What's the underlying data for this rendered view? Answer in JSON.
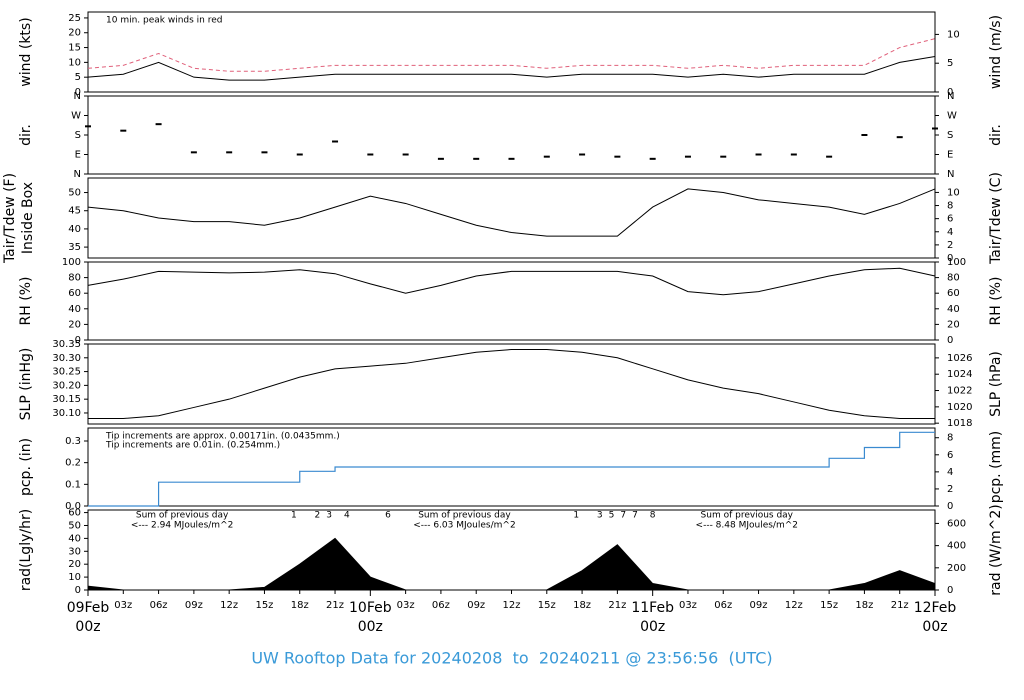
{
  "chart_data": [
    {
      "type": "line",
      "ylabel": "wind (kts)",
      "y2label": "wind (m/s)",
      "x": [
        0,
        3,
        6,
        9,
        12,
        15,
        18,
        21,
        24,
        27,
        30,
        33,
        36,
        39,
        42,
        45,
        48,
        51,
        54,
        57,
        60,
        63,
        66,
        69,
        72
      ],
      "xlim": [
        0,
        72
      ],
      "ylim": [
        0,
        27
      ],
      "yticks": [
        0,
        5,
        10,
        15,
        20,
        25
      ],
      "y2lim": [
        0,
        13.89
      ],
      "y2ticks": [
        0,
        5,
        10
      ],
      "annotations": [
        {
          "text": "10 min. peak winds in red",
          "color": "#d0506a"
        }
      ],
      "series": [
        {
          "name": "peak",
          "color": "#e0607a",
          "dash": true,
          "values": [
            8,
            9,
            13,
            8,
            7,
            7,
            8,
            9,
            9,
            9,
            9,
            9,
            9,
            8,
            9,
            9,
            9,
            8,
            9,
            8,
            9,
            9,
            9,
            15,
            18
          ]
        },
        {
          "name": "wind",
          "color": "#000000",
          "values": [
            5,
            6,
            10,
            5,
            4,
            4,
            5,
            6,
            6,
            6,
            6,
            6,
            6,
            5,
            6,
            6,
            6,
            5,
            6,
            5,
            6,
            6,
            6,
            10,
            12
          ]
        }
      ]
    },
    {
      "type": "scatter",
      "ylabel": "dir.",
      "y2label": "dir.",
      "x": [
        0,
        3,
        6,
        9,
        12,
        15,
        18,
        21,
        24,
        27,
        30,
        33,
        36,
        39,
        42,
        45,
        48,
        51,
        54,
        57,
        60,
        63,
        66,
        69,
        72
      ],
      "xlim": [
        0,
        72
      ],
      "ylim": [
        0,
        360
      ],
      "yticks": [
        {
          "value": 0,
          "label": "N"
        },
        {
          "value": 90,
          "label": "E"
        },
        {
          "value": 180,
          "label": "S"
        },
        {
          "value": 270,
          "label": "W"
        },
        {
          "value": 360,
          "label": "N"
        }
      ],
      "y2lim": [
        0,
        360
      ],
      "y2ticks": [
        {
          "value": 0,
          "label": "N"
        },
        {
          "value": 90,
          "label": "E"
        },
        {
          "value": 180,
          "label": "S"
        },
        {
          "value": 270,
          "label": "W"
        },
        {
          "value": 360,
          "label": "N"
        }
      ],
      "series": [
        {
          "name": "dir",
          "color": "#000000",
          "values": [
            220,
            200,
            230,
            100,
            100,
            100,
            90,
            150,
            90,
            90,
            70,
            70,
            70,
            80,
            90,
            80,
            70,
            80,
            80,
            90,
            90,
            80,
            180,
            170,
            210
          ]
        }
      ]
    },
    {
      "type": "line",
      "ylabel": "Tair/Tdew (F)",
      "ylabel_sub": "Inside Box",
      "y2label": "Tair/Tdew (C)",
      "x": [
        0,
        3,
        6,
        9,
        12,
        15,
        18,
        21,
        24,
        27,
        30,
        33,
        36,
        39,
        42,
        45,
        48,
        51,
        54,
        57,
        60,
        63,
        66,
        69,
        72
      ],
      "xlim": [
        0,
        72
      ],
      "ylim": [
        32,
        54
      ],
      "yticks": [
        35,
        40,
        45,
        50
      ],
      "y2lim": [
        0,
        12.2
      ],
      "y2ticks": [
        0,
        2,
        4,
        6,
        8,
        10
      ],
      "series": [
        {
          "name": "Tair",
          "color": "#000000",
          "values": [
            46,
            45,
            43,
            42,
            42,
            41,
            43,
            46,
            49,
            47,
            44,
            41,
            39,
            38,
            38,
            38,
            46,
            51,
            50,
            48,
            47,
            46,
            44,
            47,
            51
          ]
        }
      ]
    },
    {
      "type": "line",
      "ylabel": "RH (%)",
      "y2label": "RH (%)",
      "x": [
        0,
        3,
        6,
        9,
        12,
        15,
        18,
        21,
        24,
        27,
        30,
        33,
        36,
        39,
        42,
        45,
        48,
        51,
        54,
        57,
        60,
        63,
        66,
        69,
        72
      ],
      "xlim": [
        0,
        72
      ],
      "ylim": [
        0,
        100
      ],
      "yticks": [
        0,
        20,
        40,
        60,
        80,
        100
      ],
      "y2lim": [
        0,
        100
      ],
      "y2ticks": [
        0,
        20,
        40,
        60,
        80,
        100
      ],
      "series": [
        {
          "name": "RH",
          "color": "#000000",
          "values": [
            70,
            78,
            88,
            87,
            86,
            87,
            90,
            85,
            72,
            60,
            70,
            82,
            88,
            88,
            88,
            88,
            82,
            62,
            58,
            62,
            72,
            82,
            90,
            92,
            82
          ]
        }
      ]
    },
    {
      "type": "line",
      "ylabel": "SLP (inHg)",
      "y2label": "SLP (hPa)",
      "x": [
        0,
        3,
        6,
        9,
        12,
        15,
        18,
        21,
        24,
        27,
        30,
        33,
        36,
        39,
        42,
        45,
        48,
        51,
        54,
        57,
        60,
        63,
        66,
        69,
        72
      ],
      "xlim": [
        0,
        72
      ],
      "ylim": [
        30.06,
        30.35
      ],
      "yticks": [
        {
          "value": 30.1,
          "label": "30.10"
        },
        30.15,
        {
          "value": 30.2,
          "label": "30.20"
        },
        30.25,
        {
          "value": 30.3,
          "label": "30.30"
        },
        30.35
      ],
      "y2lim": [
        1017.9,
        1027.7
      ],
      "y2ticks": [
        1018,
        1020,
        1022,
        1024,
        1026
      ],
      "series": [
        {
          "name": "SLP",
          "color": "#000000",
          "values": [
            30.08,
            30.08,
            30.09,
            30.12,
            30.15,
            30.19,
            30.23,
            30.26,
            30.27,
            30.28,
            30.3,
            30.32,
            30.33,
            30.33,
            30.32,
            30.3,
            30.26,
            30.22,
            30.19,
            30.17,
            30.14,
            30.11,
            30.09,
            30.08,
            30.08
          ]
        }
      ]
    },
    {
      "type": "step",
      "ylabel": "pcp. (in)",
      "y2label": "pcp. (mm)",
      "x": [
        0,
        3,
        6,
        9,
        12,
        15,
        18,
        21,
        24,
        27,
        30,
        33,
        36,
        39,
        42,
        45,
        48,
        51,
        54,
        57,
        60,
        63,
        66,
        69,
        72
      ],
      "xlim": [
        0,
        72
      ],
      "ylim": [
        0,
        0.36
      ],
      "yticks": [
        {
          "value": 0,
          "label": "0.0"
        },
        0.1,
        0.2,
        0.3
      ],
      "y2lim": [
        0,
        9.14
      ],
      "y2ticks": [
        0,
        2,
        4,
        6,
        8
      ],
      "annotations": [
        {
          "text": "Tip increments are approx. 0.00171in. (0.0435mm.)",
          "color": "#d0506a"
        },
        {
          "text": "Tip increments are 0.01in. (0.254mm.)",
          "color": "#3a8ad0"
        }
      ],
      "series": [
        {
          "name": "pcp",
          "color": "#3a8ad0",
          "values": [
            0,
            0,
            0.11,
            0.11,
            0.11,
            0.11,
            0.16,
            0.18,
            0.18,
            0.18,
            0.18,
            0.18,
            0.18,
            0.18,
            0.18,
            0.18,
            0.18,
            0.18,
            0.18,
            0.18,
            0.18,
            0.22,
            0.27,
            0.34,
            0.34
          ]
        }
      ]
    },
    {
      "type": "area",
      "ylabel": "rad(Lgly/hr)",
      "y2label": "rad (W/m^2)",
      "x": [
        0,
        3,
        6,
        9,
        12,
        15,
        18,
        21,
        24,
        27,
        30,
        33,
        36,
        39,
        42,
        45,
        48,
        51,
        54,
        57,
        60,
        63,
        66,
        69,
        72
      ],
      "xlim": [
        0,
        72
      ],
      "ylim": [
        0,
        62
      ],
      "yticks": [
        0,
        10,
        20,
        30,
        40,
        50,
        60
      ],
      "y2lim": [
        0,
        721
      ],
      "y2ticks": [
        0,
        200,
        400,
        600
      ],
      "series": [
        {
          "name": "rad",
          "color": "#000000",
          "values": [
            3,
            0,
            0,
            0,
            0,
            2,
            20,
            40,
            10,
            0,
            0,
            0,
            0,
            0,
            15,
            35,
            5,
            0,
            0,
            0,
            0,
            0,
            5,
            15,
            5
          ]
        }
      ],
      "markers": {
        "x": [
          17.5,
          19.5,
          20.5,
          22,
          25.5,
          41.5,
          43.5,
          44.5,
          45.5,
          46.5,
          48
        ],
        "labels": [
          "1",
          "2",
          "3",
          "4",
          "6",
          "1",
          "3",
          "5",
          "7",
          "7",
          "8"
        ]
      },
      "daily_sums": [
        {
          "title": "Sum of previous day",
          "text": "<--- 2.94 MJoules/m^2"
        },
        {
          "title": "Sum of previous day",
          "text": "<--- 6.03 MJoules/m^2"
        },
        {
          "title": "Sum of previous day",
          "text": "<--- 8.48 MJoules/m^2"
        }
      ],
      "xticks": [
        {
          "value": 3,
          "label": "03z"
        },
        {
          "value": 6,
          "label": "06z"
        },
        {
          "value": 9,
          "label": "09z"
        },
        {
          "value": 12,
          "label": "12z"
        },
        {
          "value": 15,
          "label": "15z"
        },
        {
          "value": 18,
          "label": "18z"
        },
        {
          "value": 21,
          "label": "21z"
        },
        {
          "value": 27,
          "label": "03z"
        },
        {
          "value": 30,
          "label": "06z"
        },
        {
          "value": 33,
          "label": "09z"
        },
        {
          "value": 36,
          "label": "12z"
        },
        {
          "value": 39,
          "label": "15z"
        },
        {
          "value": 42,
          "label": "18z"
        },
        {
          "value": 45,
          "label": "21z"
        },
        {
          "value": 51,
          "label": "03z"
        },
        {
          "value": 54,
          "label": "06z"
        },
        {
          "value": 57,
          "label": "09z"
        },
        {
          "value": 60,
          "label": "12z"
        },
        {
          "value": 63,
          "label": "15z"
        },
        {
          "value": 66,
          "label": "18z"
        },
        {
          "value": 69,
          "label": "21z"
        }
      ],
      "day_ticks": [
        {
          "value": 0,
          "label": "09Feb"
        },
        {
          "value": 24,
          "label": "10Feb"
        },
        {
          "value": 48,
          "label": "11Feb"
        },
        {
          "value": 72,
          "label": "12Feb"
        }
      ],
      "day_hour_label": "00z"
    }
  ],
  "footer": "UW Rooftop Data for 20240208  to  20240211 @ 23:56:56  (UTC)"
}
